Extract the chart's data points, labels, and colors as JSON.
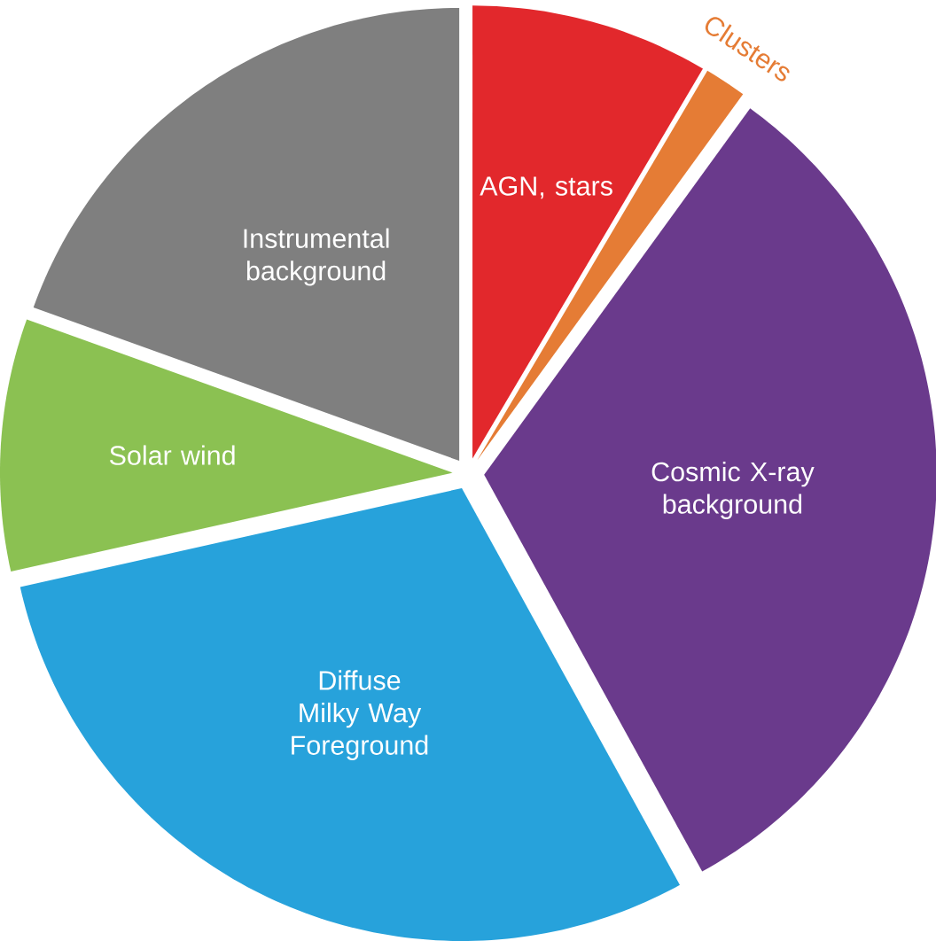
{
  "chart_data": {
    "type": "pie",
    "categories": [
      "AGN, stars",
      "Clusters",
      "Cosmic X-ray background",
      "Diffuse Milky Way Foreground",
      "Solar wind",
      "Instrumental background"
    ],
    "values": [
      8.5,
      1.5,
      32,
      29.5,
      9,
      19.5
    ],
    "colors": [
      "#e2282c",
      "#e57c35",
      "#6a3a8c",
      "#27a2db",
      "#8bc152",
      "#7f7f7f"
    ]
  }
}
